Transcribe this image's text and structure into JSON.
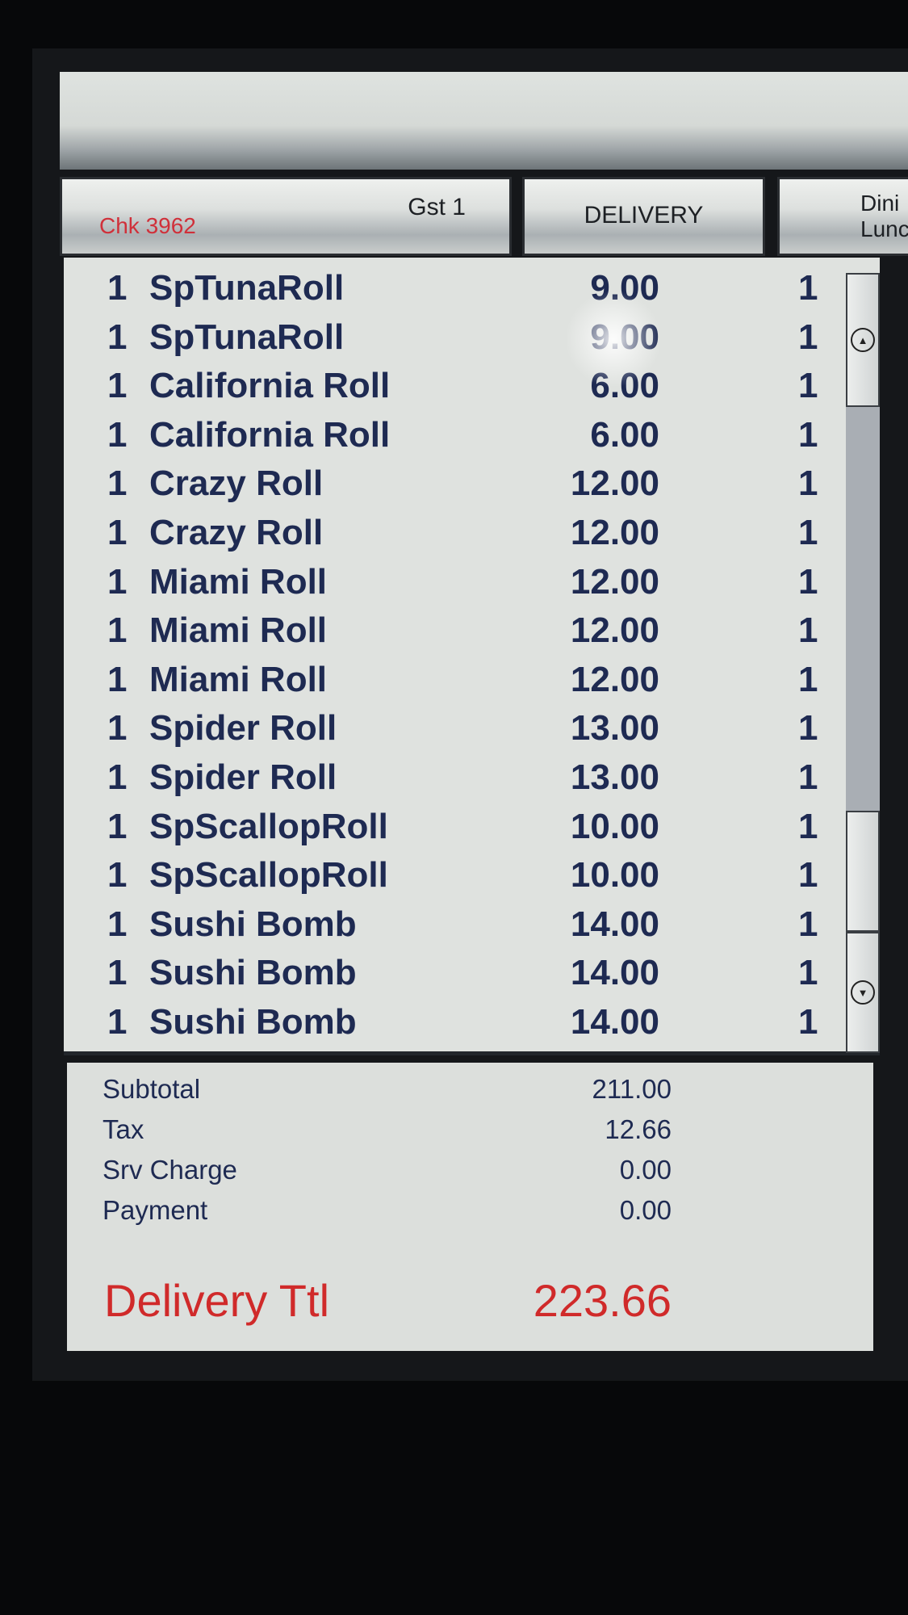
{
  "header": {
    "check": "Chk 3962",
    "guest": "Gst 1",
    "order_type": "DELIVERY",
    "next_tab": "Dini\nLunc"
  },
  "items": [
    {
      "qty": "1",
      "name": "SpTunaRoll",
      "price": "9.00",
      "seat": "1"
    },
    {
      "qty": "1",
      "name": "SpTunaRoll",
      "price": "9.00",
      "seat": "1"
    },
    {
      "qty": "1",
      "name": "California Roll",
      "price": "6.00",
      "seat": "1"
    },
    {
      "qty": "1",
      "name": "California Roll",
      "price": "6.00",
      "seat": "1"
    },
    {
      "qty": "1",
      "name": "Crazy Roll",
      "price": "12.00",
      "seat": "1"
    },
    {
      "qty": "1",
      "name": "Crazy Roll",
      "price": "12.00",
      "seat": "1"
    },
    {
      "qty": "1",
      "name": "Miami Roll",
      "price": "12.00",
      "seat": "1"
    },
    {
      "qty": "1",
      "name": "Miami Roll",
      "price": "12.00",
      "seat": "1"
    },
    {
      "qty": "1",
      "name": "Miami Roll",
      "price": "12.00",
      "seat": "1"
    },
    {
      "qty": "1",
      "name": "Spider Roll",
      "price": "13.00",
      "seat": "1"
    },
    {
      "qty": "1",
      "name": "Spider Roll",
      "price": "13.00",
      "seat": "1"
    },
    {
      "qty": "1",
      "name": "SpScallopRoll",
      "price": "10.00",
      "seat": "1"
    },
    {
      "qty": "1",
      "name": "SpScallopRoll",
      "price": "10.00",
      "seat": "1"
    },
    {
      "qty": "1",
      "name": "Sushi Bomb",
      "price": "14.00",
      "seat": "1"
    },
    {
      "qty": "1",
      "name": "Sushi Bomb",
      "price": "14.00",
      "seat": "1"
    },
    {
      "qty": "1",
      "name": "Sushi Bomb",
      "price": "14.00",
      "seat": "1"
    }
  ],
  "totals": [
    {
      "label": "Subtotal",
      "value": "211.00"
    },
    {
      "label": "Tax",
      "value": "12.66"
    },
    {
      "label": "Srv Charge",
      "value": "0.00"
    },
    {
      "label": "Payment",
      "value": "0.00"
    }
  ],
  "grand_total": {
    "label": "Delivery Ttl",
    "value": "223.66"
  },
  "colors": {
    "accent_red": "#d02a2a",
    "text_navy": "#1e2a52"
  },
  "icons": {
    "scroll_up": "circle-up-arrow-icon",
    "scroll_down": "circle-down-arrow-icon"
  }
}
